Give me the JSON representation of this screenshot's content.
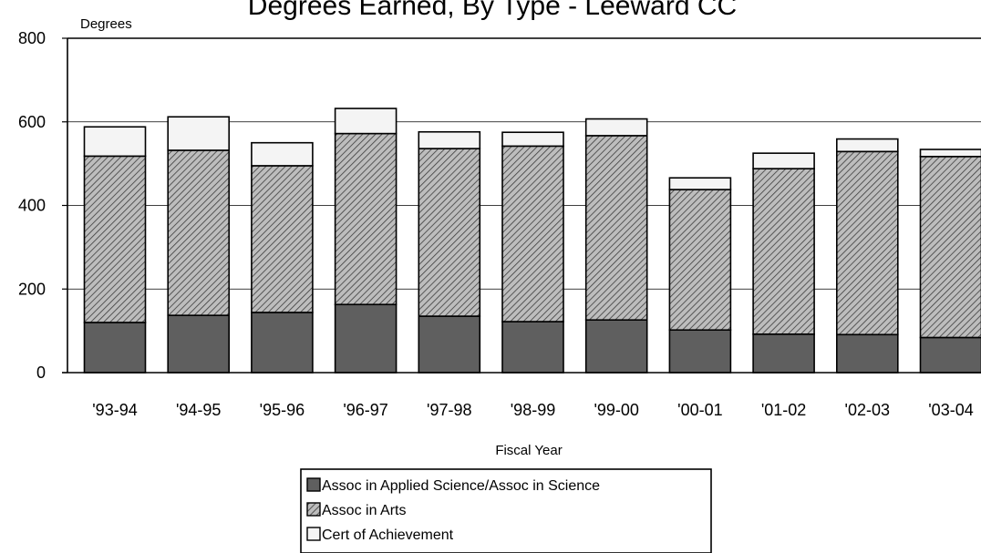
{
  "chart_data": {
    "type": "bar",
    "stacked": true,
    "title": "Degrees Earned, By Type - Leeward CC",
    "xlabel": "Fiscal Year",
    "ylabel": "Degrees",
    "ylim": [
      0,
      800
    ],
    "yticks": [
      0,
      200,
      400,
      600,
      800
    ],
    "grid": true,
    "legend_position": "bottom",
    "categories": [
      "'93-94",
      "'94-95",
      "'95-96",
      "'96-97",
      "'97-98",
      "'98-99",
      "'99-00",
      "'00-01",
      "'01-02",
      "'02-03",
      "'03-04"
    ],
    "series": [
      {
        "name": "Assoc in Applied Science/Assoc in Science",
        "color": "#5f5f5f",
        "pattern": "solid",
        "values": [
          120,
          137,
          144,
          163,
          135,
          122,
          126,
          102,
          92,
          91,
          84
        ]
      },
      {
        "name": "Assoc in Arts",
        "color": "#8c8c8c",
        "pattern": "diagonal-hatch",
        "values": [
          398,
          395,
          351,
          409,
          401,
          420,
          441,
          336,
          396,
          438,
          433
        ]
      },
      {
        "name": "Cert of Achievement",
        "color": "#f4f4f4",
        "pattern": "solid",
        "values": [
          70,
          80,
          55,
          60,
          40,
          33,
          40,
          28,
          37,
          30,
          17
        ]
      }
    ]
  }
}
